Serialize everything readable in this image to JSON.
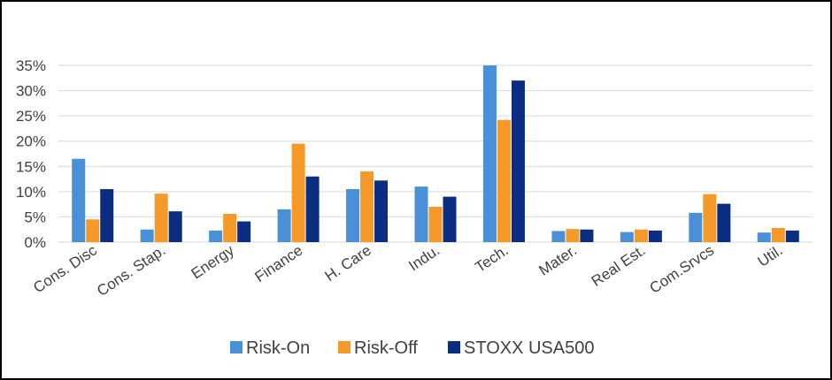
{
  "chart_data": {
    "type": "bar",
    "categories": [
      "Cons. Disc",
      "Cons. Stap.",
      "Energy",
      "Finance",
      "H. Care",
      "Indu.",
      "Tech.",
      "Mater.",
      "Real Est.",
      "Com.Srvcs",
      "Util."
    ],
    "series": [
      {
        "name": "Risk-On",
        "color": "#4a90d9",
        "values": [
          16.5,
          2.5,
          2.3,
          6.5,
          10.5,
          11.0,
          35.0,
          2.2,
          2.0,
          5.8,
          1.9
        ]
      },
      {
        "name": "Risk-Off",
        "color": "#f59a2a",
        "values": [
          4.5,
          9.6,
          5.6,
          19.5,
          14.0,
          7.0,
          24.2,
          2.6,
          2.5,
          9.5,
          2.8
        ]
      },
      {
        "name": "STOXX USA500",
        "color": "#0b2e83",
        "values": [
          10.5,
          6.1,
          4.1,
          13.0,
          12.2,
          9.0,
          32.0,
          2.5,
          2.3,
          7.6,
          2.3
        ]
      }
    ],
    "yticks": [
      "0%",
      "5%",
      "10%",
      "15%",
      "20%",
      "25%",
      "30%",
      "35%"
    ],
    "ylim": [
      0,
      35
    ],
    "title": "",
    "xlabel": "",
    "ylabel": "",
    "grid": true,
    "legend_position": "bottom"
  }
}
